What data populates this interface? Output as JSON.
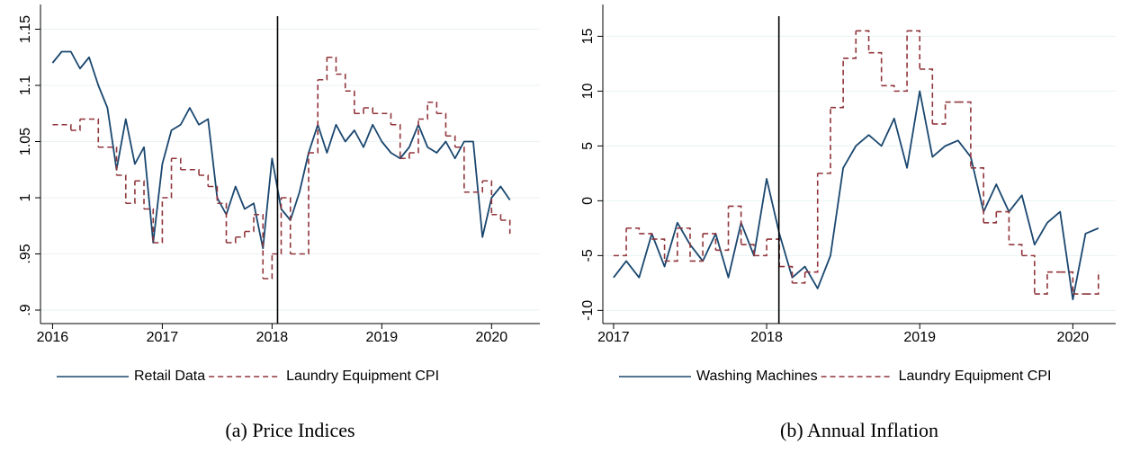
{
  "chart_data": [
    {
      "type": "line",
      "caption": "(a) Price Indices",
      "grid": true,
      "legend": "bottom",
      "xlim": [
        2015.89,
        2020.44
      ],
      "xticks": [
        2016,
        2017,
        2018,
        2019,
        2020
      ],
      "ylim": [
        0.888,
        1.172
      ],
      "yticks": [
        {
          "value": 0.9,
          "label": ".9"
        },
        {
          "value": 0.95,
          "label": ".95"
        },
        1,
        1.05,
        1.1,
        1.15
      ],
      "vline": 2018.05,
      "x": [
        2016,
        2016.083,
        2016.167,
        2016.25,
        2016.333,
        2016.417,
        2016.5,
        2016.583,
        2016.667,
        2016.75,
        2016.833,
        2016.917,
        2017,
        2017.083,
        2017.167,
        2017.25,
        2017.333,
        2017.417,
        2017.5,
        2017.583,
        2017.667,
        2017.75,
        2017.833,
        2017.917,
        2018,
        2018.083,
        2018.167,
        2018.25,
        2018.333,
        2018.417,
        2018.5,
        2018.583,
        2018.667,
        2018.75,
        2018.833,
        2018.917,
        2019,
        2019.083,
        2019.167,
        2019.25,
        2019.333,
        2019.417,
        2019.5,
        2019.583,
        2019.667,
        2019.75,
        2019.833,
        2019.917,
        2020,
        2020.083,
        2020.167
      ],
      "series": [
        {
          "name": "Retail Data",
          "color": "#1a476f",
          "dash": false,
          "step": false,
          "values": [
            1.12,
            1.13,
            1.13,
            1.115,
            1.125,
            1.1,
            1.08,
            1.025,
            1.07,
            1.03,
            1.045,
            0.96,
            1.03,
            1.06,
            1.065,
            1.08,
            1.065,
            1.07,
            1.0,
            0.985,
            1.01,
            0.99,
            0.995,
            0.955,
            1.035,
            0.99,
            0.98,
            1.005,
            1.04,
            1.065,
            1.04,
            1.065,
            1.05,
            1.06,
            1.045,
            1.065,
            1.05,
            1.04,
            1.035,
            1.045,
            1.065,
            1.045,
            1.04,
            1.05,
            1.035,
            1.05,
            1.05,
            0.965,
            1.0,
            1.01,
            0.998
          ]
        },
        {
          "name": "Laundry Equipment CPI",
          "color": "#90353b",
          "dash": true,
          "step": true,
          "values": [
            1.065,
            1.065,
            1.06,
            1.07,
            1.07,
            1.045,
            1.045,
            1.02,
            0.995,
            1.015,
            0.99,
            0.96,
            1.0,
            1.035,
            1.025,
            1.025,
            1.02,
            1.01,
            0.995,
            0.96,
            0.965,
            0.97,
            0.985,
            0.928,
            0.95,
            1.0,
            0.95,
            0.95,
            1.04,
            1.105,
            1.125,
            1.11,
            1.095,
            1.075,
            1.08,
            1.075,
            1.075,
            1.065,
            1.035,
            1.04,
            1.07,
            1.085,
            1.075,
            1.055,
            1.045,
            1.005,
            1.005,
            1.015,
            0.985,
            0.98,
            0.968
          ]
        }
      ]
    },
    {
      "type": "line",
      "caption": "(b) Annual Inflation",
      "grid": true,
      "legend": "bottom",
      "xlim": [
        2016.93,
        2020.28
      ],
      "xticks": [
        2017,
        2018,
        2019,
        2020
      ],
      "ylim": [
        -11.2,
        17.9
      ],
      "yticks": [
        -10,
        -5,
        0,
        5,
        10,
        15
      ],
      "vline": 2018.08,
      "x": [
        2017,
        2017.083,
        2017.167,
        2017.25,
        2017.333,
        2017.417,
        2017.5,
        2017.583,
        2017.667,
        2017.75,
        2017.833,
        2017.917,
        2018,
        2018.083,
        2018.167,
        2018.25,
        2018.333,
        2018.417,
        2018.5,
        2018.583,
        2018.667,
        2018.75,
        2018.833,
        2018.917,
        2019,
        2019.083,
        2019.167,
        2019.25,
        2019.333,
        2019.417,
        2019.5,
        2019.583,
        2019.667,
        2019.75,
        2019.833,
        2019.917,
        2020,
        2020.083,
        2020.167
      ],
      "series": [
        {
          "name": "Washing Machines",
          "color": "#1a476f",
          "dash": false,
          "step": false,
          "values": [
            -7,
            -5.5,
            -7,
            -3,
            -6,
            -2,
            -4,
            -5.5,
            -3,
            -7,
            -2,
            -5,
            2,
            -3,
            -7,
            -6,
            -8,
            -5,
            3,
            5,
            6,
            5,
            7.5,
            3,
            10,
            4,
            5,
            5.5,
            4,
            -1,
            1.5,
            -1,
            0.5,
            -4,
            -2,
            -1,
            -9,
            -3,
            -2.5
          ]
        },
        {
          "name": "Laundry Equipment CPI",
          "color": "#90353b",
          "dash": true,
          "step": true,
          "values": [
            -5,
            -2.5,
            -3,
            -3.5,
            -5.5,
            -2.5,
            -5.5,
            -3,
            -4.5,
            -0.5,
            -4,
            -5,
            -3.5,
            -6,
            -7.5,
            -6.5,
            2.5,
            8.5,
            13,
            15.5,
            13.5,
            10.5,
            10,
            15.5,
            12,
            7,
            9,
            9,
            3,
            -2,
            -1,
            -4,
            -5,
            -8.5,
            -6.5,
            -6.5,
            -8.5,
            -8.5,
            -6.5
          ]
        }
      ]
    }
  ]
}
